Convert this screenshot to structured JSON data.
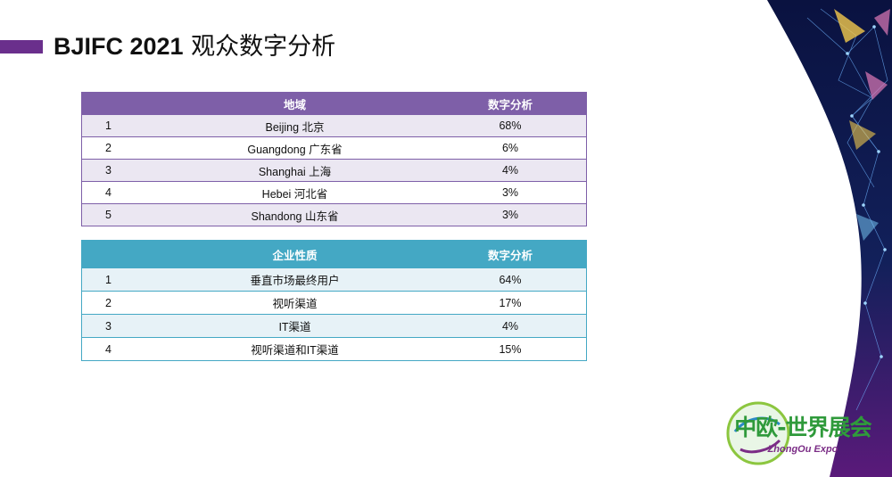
{
  "title": {
    "en": "BJIFC 2021",
    "cn": "观众数字分析"
  },
  "region_table": {
    "headers": [
      "",
      "地域",
      "数字分析"
    ],
    "rows": [
      {
        "idx": "1",
        "name": "Beijing 北京",
        "value": "68%"
      },
      {
        "idx": "2",
        "name": "Guangdong  广东省",
        "value": "6%"
      },
      {
        "idx": "3",
        "name": "Shanghai  上海",
        "value": "4%"
      },
      {
        "idx": "4",
        "name": "Hebei  河北省",
        "value": "3%"
      },
      {
        "idx": "5",
        "name": "Shandong  山东省",
        "value": "3%"
      }
    ]
  },
  "company_table": {
    "headers": [
      "",
      "企业性质",
      "数字分析"
    ],
    "rows": [
      {
        "idx": "1",
        "name": "垂直市场最终用户",
        "value": "64%"
      },
      {
        "idx": "2",
        "name": "视听渠道",
        "value": "17%"
      },
      {
        "idx": "3",
        "name": "IT渠道",
        "value": "4%"
      },
      {
        "idx": "4",
        "name": "视听渠道和IT渠道",
        "value": "15%"
      }
    ]
  },
  "logo": {
    "cn": "中欧-世界展会",
    "en": "ZhongOu Expo"
  },
  "colors": {
    "accent": "#6a2f8c",
    "table1": "#7e5fa8",
    "table2": "#44a8c4",
    "logo_green": "#2f9a3b"
  }
}
